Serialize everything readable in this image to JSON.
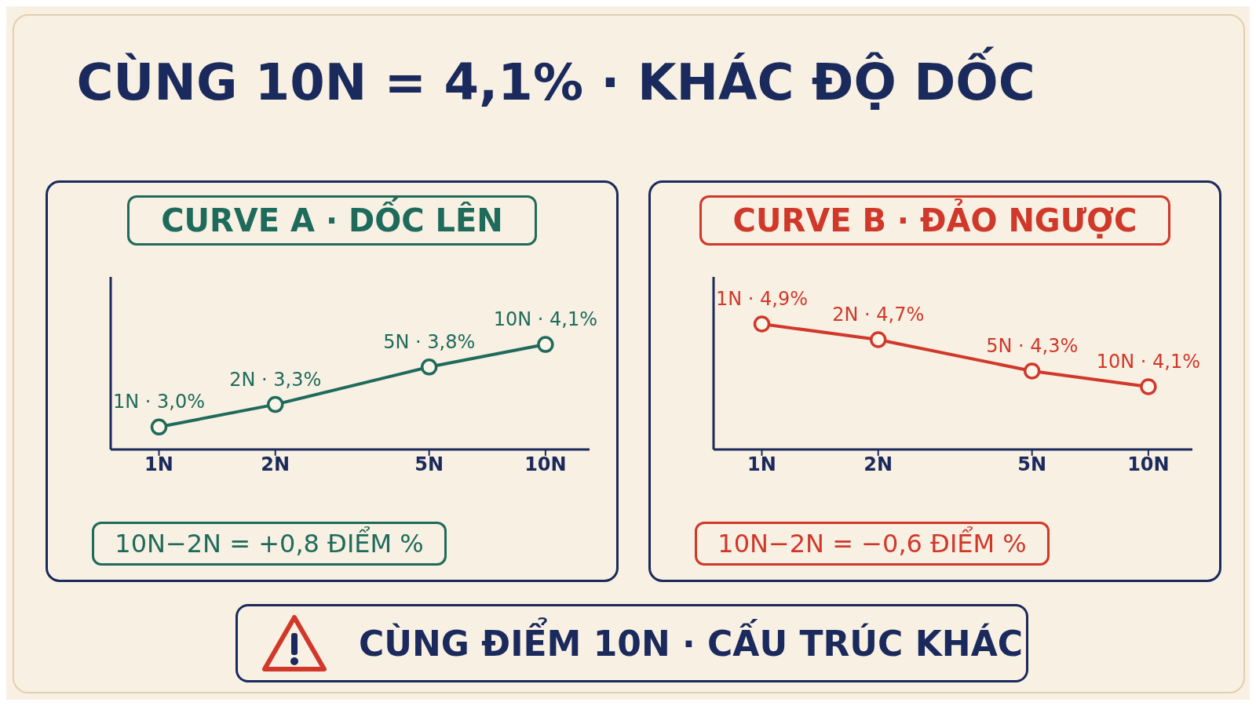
{
  "chart_data": [
    {
      "type": "line",
      "title": "CÙNG 10N = 4,1% · KHÁC ĐỘ DỐC",
      "subtitle": "CURVE A · DỐC LÊN",
      "x": [
        1,
        2,
        5,
        10
      ],
      "log": "x",
      "xlim": [
        0.75,
        13
      ],
      "xticks": [
        {
          "value": 1,
          "label": "1N"
        },
        {
          "value": 2,
          "label": "2N"
        },
        {
          "value": 5,
          "label": "5N"
        },
        {
          "value": 10,
          "label": "10N"
        }
      ],
      "ylim": [
        2.7,
        5
      ],
      "tick_labels": "x",
      "grid": false,
      "legend": false,
      "marker": "circle",
      "line_style": "solid",
      "series": [
        {
          "color": "#1e6b5c",
          "values": [
            3.0,
            3.3,
            3.8,
            4.1
          ],
          "value_labels": [
            "1N · 3,0%",
            "2N · 3,3%",
            "5N · 3,8%",
            "10N · 4,1%"
          ]
        }
      ],
      "annotations": [
        "10N−2N = +0,8 ĐIỂM %"
      ]
    },
    {
      "type": "line",
      "subtitle": "CURVE B · ĐẢO NGƯỢC",
      "x": [
        1,
        2,
        5,
        10
      ],
      "log": "x",
      "xlim": [
        0.75,
        13
      ],
      "xticks": [
        {
          "value": 1,
          "label": "1N"
        },
        {
          "value": 2,
          "label": "2N"
        },
        {
          "value": 5,
          "label": "5N"
        },
        {
          "value": 10,
          "label": "10N"
        }
      ],
      "ylim": [
        3.3,
        5.5
      ],
      "tick_labels": "x",
      "grid": false,
      "legend": false,
      "marker": "circle",
      "line_style": "solid",
      "series": [
        {
          "color": "#d0382a",
          "values": [
            4.9,
            4.7,
            4.3,
            4.1
          ],
          "value_labels": [
            "1N · 4,9%",
            "2N · 4,7%",
            "5N · 4,3%",
            "10N · 4,1%"
          ]
        }
      ],
      "annotations": [
        "10N−2N = −0,6 ĐIỂM %",
        "CÙNG ĐIỂM 10N · CẤU TRÚC KHÁC"
      ]
    }
  ]
}
